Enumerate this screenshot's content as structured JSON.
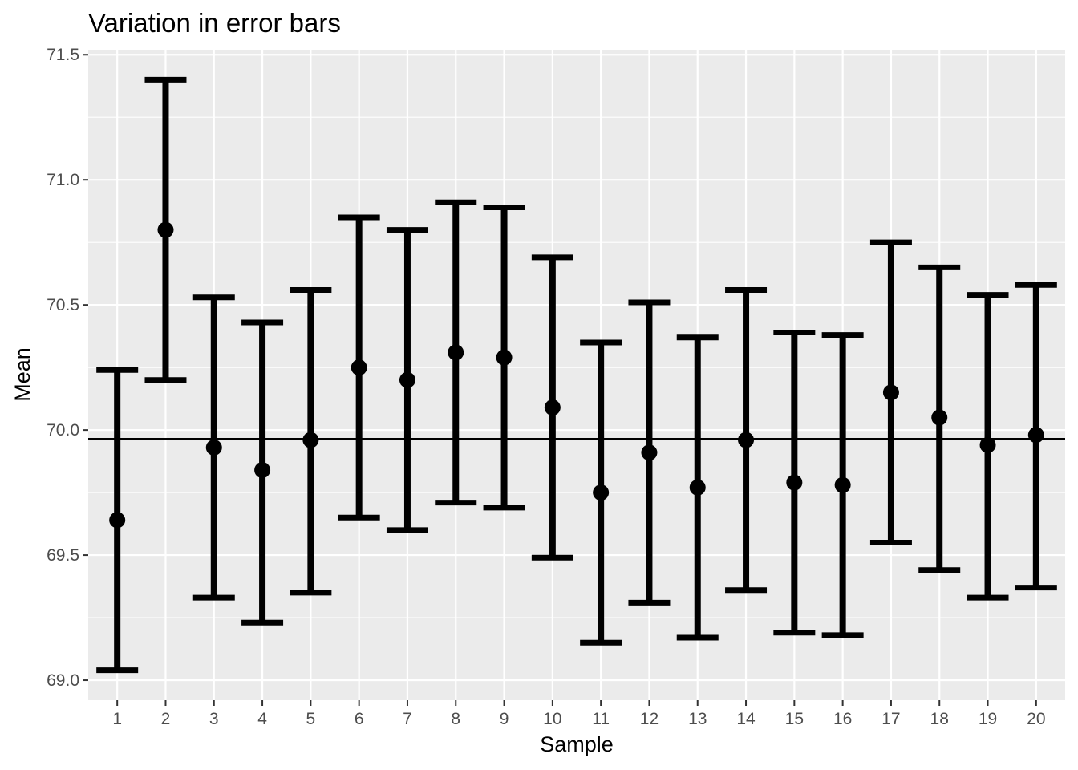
{
  "chart_data": {
    "type": "scatter",
    "title": "Variation in error bars",
    "xlabel": "Sample",
    "ylabel": "Mean",
    "ylim": [
      68.92,
      71.52
    ],
    "yticks": [
      "69.0",
      "69.5",
      "70.0",
      "70.5",
      "71.0",
      "71.5"
    ],
    "grid": true,
    "reference_line": 69.965,
    "categories": [
      "1",
      "2",
      "3",
      "4",
      "5",
      "6",
      "7",
      "8",
      "9",
      "10",
      "11",
      "12",
      "13",
      "14",
      "15",
      "16",
      "17",
      "18",
      "19",
      "20"
    ],
    "series": [
      {
        "mean": [
          69.64,
          70.8,
          69.93,
          69.84,
          69.96,
          70.25,
          70.2,
          70.31,
          70.29,
          70.09,
          69.75,
          69.91,
          69.77,
          69.96,
          69.79,
          69.78,
          70.15,
          70.05,
          69.94,
          69.98
        ],
        "lower": [
          69.04,
          70.2,
          69.33,
          69.23,
          69.35,
          69.65,
          69.6,
          69.71,
          69.69,
          69.49,
          69.15,
          69.31,
          69.17,
          69.36,
          69.19,
          69.18,
          69.55,
          69.44,
          69.33,
          69.37
        ],
        "upper": [
          70.24,
          71.4,
          70.53,
          70.43,
          70.56,
          70.85,
          70.8,
          70.91,
          70.89,
          70.69,
          70.35,
          70.51,
          70.37,
          70.56,
          70.39,
          70.38,
          70.75,
          70.65,
          70.54,
          70.58
        ]
      }
    ],
    "colors": {
      "panel": "#ebebeb",
      "grid": "#ffffff",
      "ink": "#000000",
      "ticks": "#4d4d4d"
    }
  }
}
